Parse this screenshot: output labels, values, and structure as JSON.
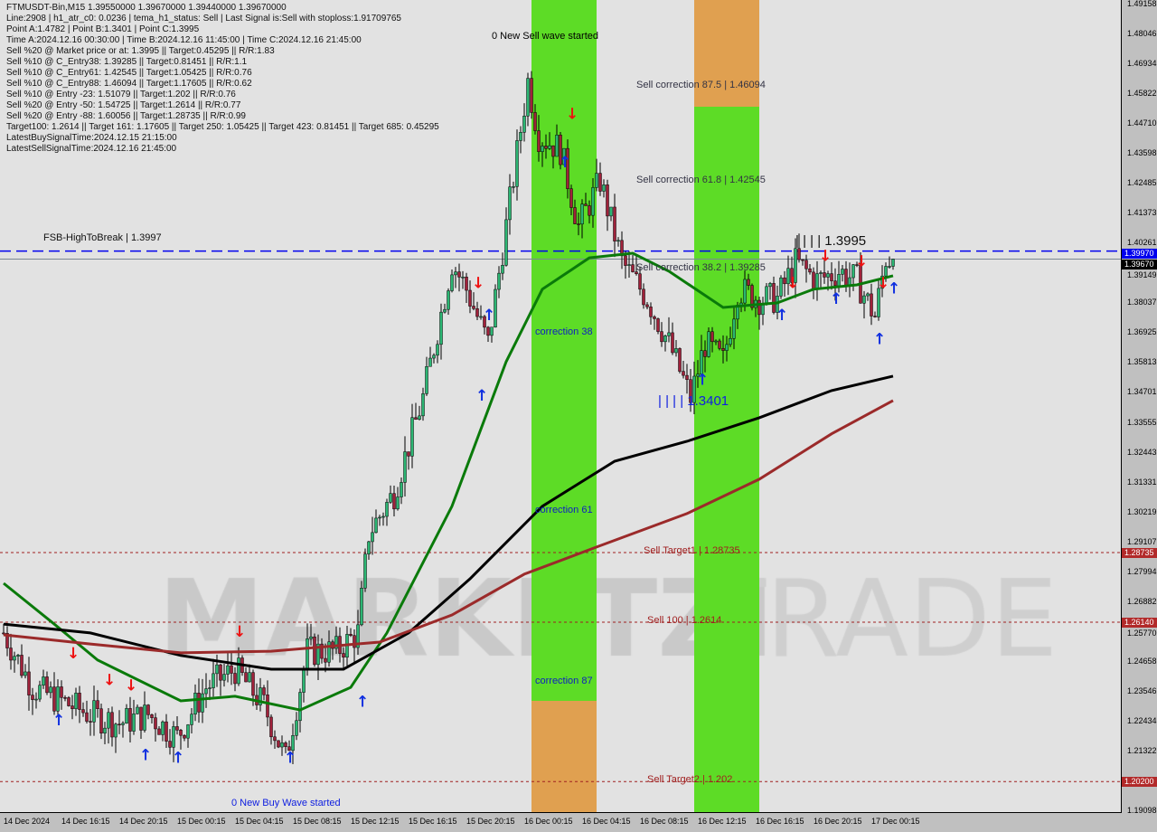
{
  "header": {
    "symbol_line": "FTMUSDT-Bin,M15  1.39550000 1.39670000 1.39440000 1.39670000",
    "lines": [
      "Line:2908 | h1_atr_c0: 0.0236 | tema_h1_status: Sell | Last Signal is:Sell with stoploss:1.91709765",
      "Point A:1.4782 | Point B:1.3401 | Point C:1.3995",
      "Time A:2024.12.16 00:30:00 | Time B:2024.12.16 11:45:00 | Time C:2024.12.16 21:45:00",
      "Sell %20 @ Market price or at: 1.3995 || Target:0.45295 || R/R:1.83",
      "Sell %10 @ C_Entry38: 1.39285 || Target:0.81451 || R/R:1.1",
      "Sell %10 @ C_Entry61: 1.42545 || Target:1.05425 || R/R:0.76",
      "Sell %10 @ C_Entry88: 1.46094 || Target:1.17605 || R/R:0.62",
      "Sell %10 @ Entry -23: 1.51079 || Target:1.202 || R/R:0.76",
      "Sell %20 @ Entry -50: 1.54725 || Target:1.2614 || R/R:0.77",
      "Sell %20 @ Entry -88: 1.60056 || Target:1.28735 || R/R:0.99",
      "Target100: 1.2614 || Target 161: 1.17605 || Target 250: 1.05425 || Target 423: 0.81451 || Target 685: 0.45295",
      "LatestBuySignalTime:2024.12.15 21:15:00",
      "LatestSellSignalTime:2024.12.16 21:45:00"
    ]
  },
  "watermark": "MARKETZI TRADE",
  "colors": {
    "bull": "#2bb673",
    "bear": "#a0213a",
    "ma_fast": "#0a7a0a",
    "ma_mid": "#000000",
    "ma_slow": "#9b2a2a",
    "zone_green": "#5ddc26",
    "zone_orange": "#e0a050",
    "buy": "#1030e0",
    "sell": "#ee1111",
    "target_line": "#a02020",
    "break_line": "#0000ee"
  },
  "chart_data": {
    "type": "candlestick",
    "symbol": "FTMUSDT-Bin",
    "timeframe": "M15",
    "ylim": [
      1.19098,
      1.49158
    ],
    "y_ticks": [
      "1.49158",
      "1.48046",
      "1.46934",
      "1.45822",
      "1.44710",
      "1.43598",
      "1.42485",
      "1.41373",
      "1.40261",
      "1.39149",
      "1.38037",
      "1.36925",
      "1.35813",
      "1.34701",
      "1.33555",
      "1.32443",
      "1.31331",
      "1.30219",
      "1.29107",
      "1.27994",
      "1.26882",
      "1.25770",
      "1.24658",
      "1.23546",
      "1.22434",
      "1.21322",
      "1.19098"
    ],
    "x_start": "2024-12-14 12:15",
    "x_ticks": [
      {
        "t": "2024-12-14 12:15",
        "label": "14 Dec 2024"
      },
      {
        "t": "2024-12-14 16:15",
        "label": "14 Dec 16:15"
      },
      {
        "t": "2024-12-14 20:15",
        "label": "14 Dec 20:15"
      },
      {
        "t": "2024-12-15 00:15",
        "label": "15 Dec 00:15"
      },
      {
        "t": "2024-12-15 04:15",
        "label": "15 Dec 04:15"
      },
      {
        "t": "2024-12-15 08:15",
        "label": "15 Dec 08:15"
      },
      {
        "t": "2024-12-15 12:15",
        "label": "15 Dec 12:15"
      },
      {
        "t": "2024-12-15 16:15",
        "label": "15 Dec 16:15"
      },
      {
        "t": "2024-12-15 20:15",
        "label": "15 Dec 20:15"
      },
      {
        "t": "2024-12-16 00:15",
        "label": "16 Dec 00:15"
      },
      {
        "t": "2024-12-16 04:15",
        "label": "16 Dec 04:15"
      },
      {
        "t": "2024-12-16 08:15",
        "label": "16 Dec 08:15"
      },
      {
        "t": "2024-12-16 12:15",
        "label": "16 Dec 12:15"
      },
      {
        "t": "2024-12-16 16:15",
        "label": "16 Dec 16:15"
      },
      {
        "t": "2024-12-16 20:15",
        "label": "16 Dec 20:15"
      },
      {
        "t": "2024-12-17 00:15",
        "label": "17 Dec 00:15"
      }
    ],
    "close_path": [
      [
        "2024-12-14 12:15",
        1.2574
      ],
      [
        "2024-12-14 14:15",
        1.2371
      ],
      [
        "2024-12-14 16:15",
        1.2321
      ],
      [
        "2024-12-14 18:15",
        1.227
      ],
      [
        "2024-12-14 20:15",
        1.2237
      ],
      [
        "2024-12-14 22:15",
        1.227
      ],
      [
        "2024-12-15 00:15",
        1.2186
      ],
      [
        "2024-12-15 02:15",
        1.2371
      ],
      [
        "2024-12-15 04:15",
        1.2439
      ],
      [
        "2024-12-15 06:15",
        1.2304
      ],
      [
        "2024-12-15 07:45",
        1.2102
      ],
      [
        "2024-12-15 09:15",
        1.2506
      ],
      [
        "2024-12-15 11:15",
        1.2506
      ],
      [
        "2024-12-15 12:45",
        1.2574
      ],
      [
        "2024-12-15 13:30",
        1.2945
      ],
      [
        "2024-12-15 15:15",
        1.3096
      ],
      [
        "2024-12-15 17:15",
        1.345
      ],
      [
        "2024-12-15 19:15",
        1.3955
      ],
      [
        "2024-12-15 20:15",
        1.3855
      ],
      [
        "2024-12-15 21:45",
        1.3652
      ],
      [
        "2024-12-15 23:00",
        1.409
      ],
      [
        "2024-12-16 00:30",
        1.463
      ],
      [
        "2024-12-16 01:15",
        1.4427
      ],
      [
        "2024-12-16 02:45",
        1.4377
      ],
      [
        "2024-12-16 04:00",
        1.409
      ],
      [
        "2024-12-16 05:30",
        1.4259
      ],
      [
        "2024-12-16 07:00",
        1.3955
      ],
      [
        "2024-12-16 08:45",
        1.382
      ],
      [
        "2024-12-16 10:15",
        1.3652
      ],
      [
        "2024-12-16 11:45",
        1.345
      ],
      [
        "2024-12-16 12:45",
        1.3652
      ],
      [
        "2024-12-16 14:00",
        1.3585
      ],
      [
        "2024-12-16 15:00",
        1.3855
      ],
      [
        "2024-12-16 16:30",
        1.382
      ],
      [
        "2024-12-16 17:45",
        1.382
      ],
      [
        "2024-12-16 19:00",
        1.3955
      ],
      [
        "2024-12-16 20:30",
        1.3888
      ],
      [
        "2024-12-16 22:00",
        1.3922
      ],
      [
        "2024-12-16 23:15",
        1.3888
      ],
      [
        "2024-12-17 00:30",
        1.3753
      ],
      [
        "2024-12-17 01:15",
        1.3972
      ],
      [
        "2024-12-17 01:45",
        1.3967
      ]
    ],
    "moving_averages": [
      {
        "color": "#0a7a0a",
        "points": [
          [
            "2024-12-14 12:15",
            1.2759
          ],
          [
            "2024-12-14 15:45",
            1.2607
          ],
          [
            "2024-12-14 18:45",
            1.2473
          ],
          [
            "2024-12-15 00:30",
            1.2321
          ],
          [
            "2024-12-15 04:15",
            1.2338
          ],
          [
            "2024-12-15 08:45",
            1.2287
          ],
          [
            "2024-12-15 12:15",
            1.2371
          ],
          [
            "2024-12-15 14:45",
            1.2574
          ],
          [
            "2024-12-15 19:15",
            1.3046
          ],
          [
            "2024-12-15 23:00",
            1.3585
          ],
          [
            "2024-12-16 01:30",
            1.3855
          ],
          [
            "2024-12-16 04:45",
            1.3972
          ],
          [
            "2024-12-16 07:45",
            1.3989
          ],
          [
            "2024-12-16 10:15",
            1.3922
          ],
          [
            "2024-12-16 14:00",
            1.3787
          ],
          [
            "2024-12-16 17:45",
            1.3804
          ],
          [
            "2024-12-16 20:15",
            1.3855
          ],
          [
            "2024-12-16 23:15",
            1.3871
          ],
          [
            "2024-12-17 01:45",
            1.3905
          ]
        ]
      },
      {
        "color": "#000000",
        "points": [
          [
            "2024-12-14 12:15",
            1.2607
          ],
          [
            "2024-12-14 18:15",
            1.2574
          ],
          [
            "2024-12-15 00:30",
            1.249
          ],
          [
            "2024-12-15 06:45",
            1.2439
          ],
          [
            "2024-12-15 11:45",
            1.2439
          ],
          [
            "2024-12-15 16:15",
            1.2574
          ],
          [
            "2024-12-15 20:30",
            1.2776
          ],
          [
            "2024-12-16 01:30",
            1.3046
          ],
          [
            "2024-12-16 06:30",
            1.3214
          ],
          [
            "2024-12-16 11:30",
            1.3288
          ],
          [
            "2024-12-16 16:30",
            1.3376
          ],
          [
            "2024-12-16 21:30",
            1.3477
          ],
          [
            "2024-12-17 01:45",
            1.3531
          ]
        ]
      },
      {
        "color": "#9b2a2a",
        "points": [
          [
            "2024-12-14 12:15",
            1.2567
          ],
          [
            "2024-12-14 18:15",
            1.2533
          ],
          [
            "2024-12-15 00:30",
            1.25
          ],
          [
            "2024-12-15 06:45",
            1.2506
          ],
          [
            "2024-12-15 14:15",
            1.254
          ],
          [
            "2024-12-15 19:15",
            1.2641
          ],
          [
            "2024-12-16 00:15",
            1.2793
          ],
          [
            "2024-12-16 05:15",
            1.2894
          ],
          [
            "2024-12-16 11:30",
            1.3019
          ],
          [
            "2024-12-16 16:30",
            1.3147
          ],
          [
            "2024-12-16 21:30",
            1.3316
          ],
          [
            "2024-12-17 01:45",
            1.344
          ]
        ]
      }
    ],
    "zones": [
      {
        "from": "2024-12-16 00:45",
        "to": "2024-12-16 05:15",
        "color": "#5ddc26",
        "orange_below": 1.2321
      },
      {
        "from": "2024-12-16 12:00",
        "to": "2024-12-16 16:30",
        "color": "#5ddc26",
        "orange_above": 1.4535
      }
    ],
    "hlines": [
      {
        "price": 1.3997,
        "color": "#0000ee",
        "style": "dashed",
        "label": "FSB-HighToBreak | 1.3997",
        "tag": "1.39970",
        "tag_color": "#0000ee"
      },
      {
        "price": 1.3967,
        "color": "#7a8794",
        "style": "solid",
        "label": "",
        "tag": "1.39670",
        "tag_color": "#000000"
      },
      {
        "price": 1.28735,
        "color": "#a02020",
        "style": "dotted",
        "label": "",
        "tag": "1.28735",
        "tag_color": "#b22a2a"
      },
      {
        "price": 1.2614,
        "color": "#a02020",
        "style": "dotted",
        "label": "",
        "tag": "1.26140",
        "tag_color": "#b22a2a"
      },
      {
        "price": 1.202,
        "color": "#a02020",
        "style": "dotted",
        "label": "",
        "tag": "1.20200",
        "tag_color": "#b22a2a"
      }
    ],
    "annotations": [
      {
        "t": "2024-12-15 22:00",
        "price": 1.479,
        "text": "0 New Sell wave started",
        "color": "#000000"
      },
      {
        "t": "2024-12-16 08:00",
        "price": 1.4609,
        "text": "Sell correction 87.5 | 1.46094",
        "color": "#334"
      },
      {
        "t": "2024-12-16 08:00",
        "price": 1.4255,
        "text": "Sell correction 61.8 | 1.42545",
        "color": "#334"
      },
      {
        "t": "2024-12-16 08:00",
        "price": 1.3928,
        "text": "Sell correction 38.2 | 1.39285",
        "color": "#334"
      },
      {
        "t": "2024-12-16 01:00",
        "price": 1.369,
        "text": "correction 38",
        "color": "#1020c0"
      },
      {
        "t": "2024-12-16 01:00",
        "price": 1.3026,
        "text": "correction 61",
        "color": "#1020c0"
      },
      {
        "t": "2024-12-16 01:00",
        "price": 1.239,
        "text": "correction 87",
        "color": "#1020c0"
      },
      {
        "t": "2024-12-16 09:30",
        "price": 1.3401,
        "text": "| | | | 1.3401",
        "color": "#1020e0",
        "size": 15
      },
      {
        "t": "2024-12-16 19:00",
        "price": 1.3995,
        "text": "| | | | 1.3995",
        "color": "#111",
        "size": 15
      },
      {
        "t": "2024-12-16 08:30",
        "price": 1.28735,
        "text": "Sell Target1 | 1.28735",
        "color": "#a02020"
      },
      {
        "t": "2024-12-16 08:45",
        "price": 1.2614,
        "text": "Sell 100 | 1.2614",
        "color": "#a02020"
      },
      {
        "t": "2024-12-16 08:45",
        "price": 1.202,
        "text": "Sell Target2 | 1.202",
        "color": "#a02020"
      },
      {
        "t": "2024-12-15 04:00",
        "price": 1.1935,
        "text": "0 New Buy Wave started",
        "color": "#1020e0"
      },
      {
        "t": "2024-12-14 15:00",
        "price": 1.404,
        "text": "FSB-HighToBreak | 1.3997",
        "color": "#111"
      }
    ],
    "signals": [
      {
        "type": "buy",
        "t": "2024-12-14 16:00",
        "price": 1.227
      },
      {
        "type": "buy",
        "t": "2024-12-14 22:00",
        "price": 1.214
      },
      {
        "type": "buy",
        "t": "2024-12-15 00:15",
        "price": 1.213
      },
      {
        "type": "buy",
        "t": "2024-12-15 08:00",
        "price": 1.213
      },
      {
        "type": "buy",
        "t": "2024-12-15 13:00",
        "price": 1.234
      },
      {
        "type": "buy",
        "t": "2024-12-15 21:15",
        "price": 1.348
      },
      {
        "type": "buy",
        "t": "2024-12-15 21:45",
        "price": 1.378
      },
      {
        "type": "buy",
        "t": "2024-12-16 03:00",
        "price": 1.435
      },
      {
        "type": "buy",
        "t": "2024-12-16 12:30",
        "price": 1.354
      },
      {
        "type": "buy",
        "t": "2024-12-16 18:00",
        "price": 1.378
      },
      {
        "type": "buy",
        "t": "2024-12-16 21:45",
        "price": 1.384
      },
      {
        "type": "buy",
        "t": "2024-12-17 00:45",
        "price": 1.369
      },
      {
        "type": "buy",
        "t": "2024-12-17 01:45",
        "price": 1.388
      },
      {
        "type": "sell",
        "t": "2024-12-14 17:00",
        "price": 1.248
      },
      {
        "type": "sell",
        "t": "2024-12-14 19:30",
        "price": 1.238
      },
      {
        "type": "sell",
        "t": "2024-12-14 21:00",
        "price": 1.236
      },
      {
        "type": "sell",
        "t": "2024-12-15 04:30",
        "price": 1.256
      },
      {
        "type": "sell",
        "t": "2024-12-15 21:00",
        "price": 1.386
      },
      {
        "type": "sell",
        "t": "2024-12-16 03:30",
        "price": 1.449
      },
      {
        "type": "sell",
        "t": "2024-12-16 18:45",
        "price": 1.386
      },
      {
        "type": "sell",
        "t": "2024-12-16 21:00",
        "price": 1.396
      },
      {
        "type": "sell",
        "t": "2024-12-16 23:30",
        "price": 1.394
      },
      {
        "type": "sell",
        "t": "2024-12-17 01:00",
        "price": 1.386
      }
    ]
  }
}
